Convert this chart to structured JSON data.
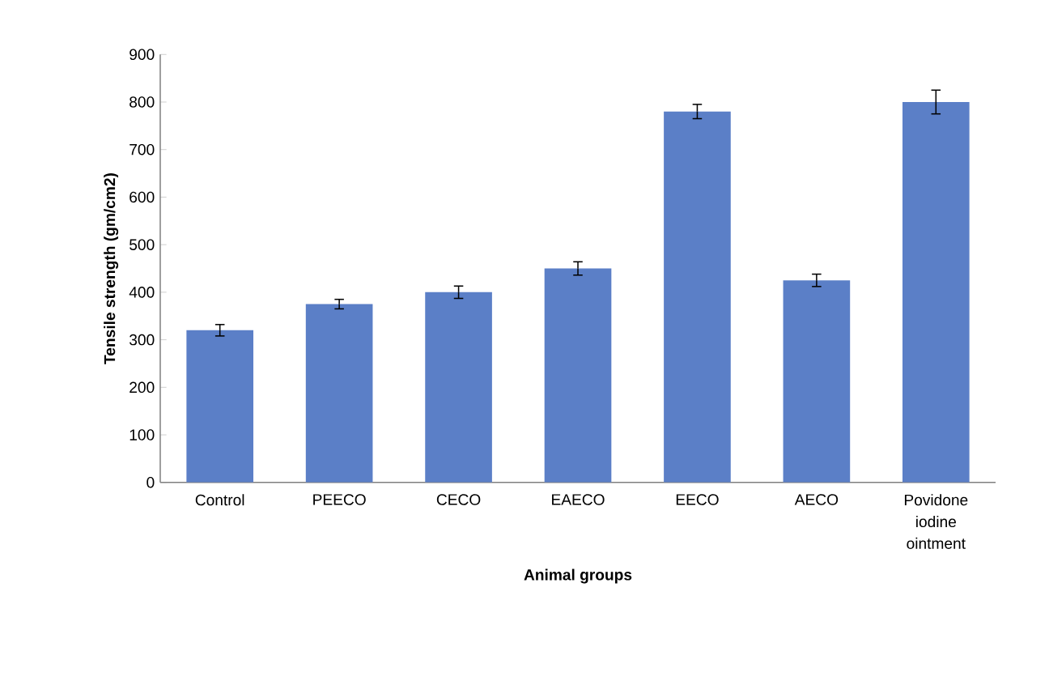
{
  "chart_data": {
    "type": "bar",
    "xlabel": "Animal groups",
    "ylabel": "Tensile strength  (gm/cm2)",
    "categories": [
      "Control",
      "PEECO",
      "CECO",
      "EAECO",
      "EECO",
      "AECO",
      "Povidone iodine ointment"
    ],
    "values": [
      320,
      375,
      400,
      450,
      780,
      425,
      800
    ],
    "errors": [
      12,
      10,
      13,
      14,
      15,
      13,
      25
    ],
    "color": "#5b7fc7",
    "ylim": [
      0,
      900
    ],
    "yticks": [
      0,
      100,
      200,
      300,
      400,
      500,
      600,
      700,
      800,
      900
    ],
    "grid": false
  }
}
